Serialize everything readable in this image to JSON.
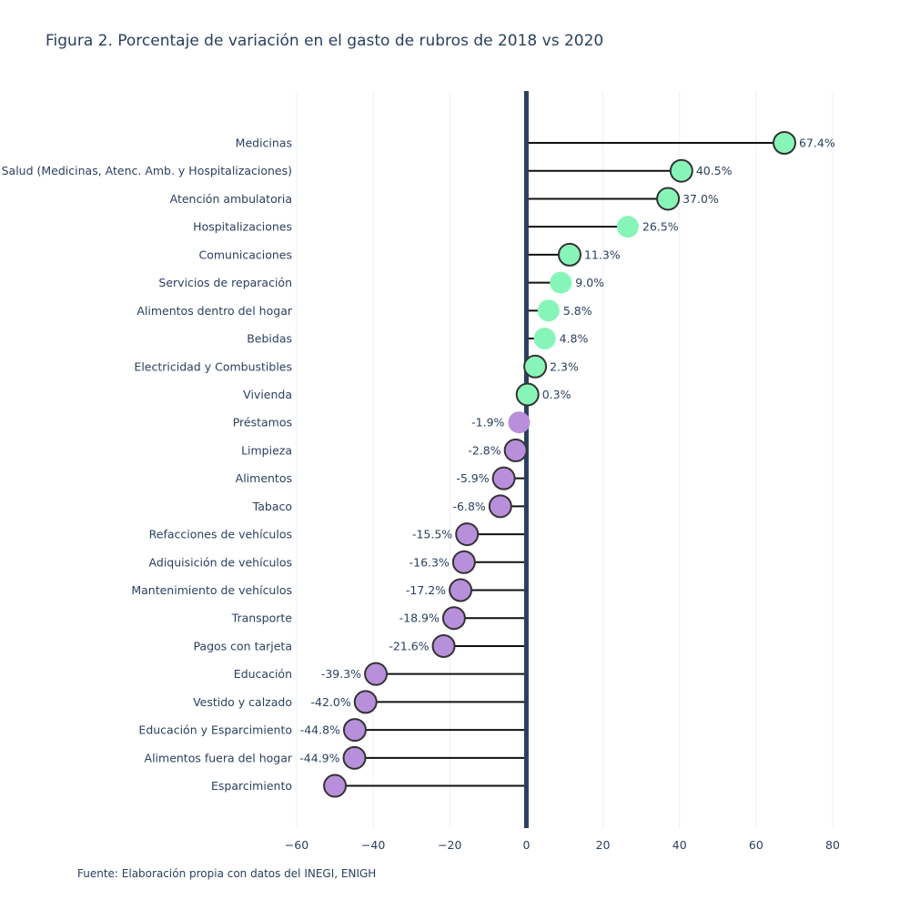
{
  "chart_data": {
    "type": "lollipop",
    "title": "Figura 2. Porcentaje de variación en el gasto de rubros de 2018 vs 2020",
    "source": "Fuente: Elaboración propia con datos del INEGI, ENIGH",
    "xlim": [
      -60,
      80
    ],
    "xticks": [
      -60,
      -40,
      -20,
      0,
      20,
      40,
      60,
      80
    ],
    "xtick_labels": [
      "−60",
      "−40",
      "−20",
      "0",
      "20",
      "40",
      "60",
      "80"
    ],
    "positive_color": "#88f5b8",
    "negative_color": "#b88fda",
    "zero_line_color": "#2a3f5f",
    "categories": [
      "Medicinas",
      "Salud (Medicinas, Atenc. Amb. y Hospitalizaciones)",
      "Atención ambulatoria",
      "Hospitalizaciones",
      "Comunicaciones",
      "Servicios de reparación",
      "Alimentos dentro del hogar",
      "Bebidas",
      "Electricidad y Combustibles",
      "Vivienda",
      "Préstamos",
      "Limpieza",
      "Alimentos",
      "Tabaco",
      "Refacciones de vehículos",
      "Adiquisición de vehículos",
      "Mantenimiento de vehículos",
      "Transporte",
      "Pagos con tarjeta",
      "Educación",
      "Vestido y calzado",
      "Educación y Esparcimiento",
      "Alimentos fuera del hogar",
      "Esparcimiento"
    ],
    "values": [
      67.4,
      40.5,
      37.0,
      26.5,
      11.3,
      9.0,
      5.8,
      4.8,
      2.3,
      0.3,
      -1.9,
      -2.8,
      -5.9,
      -6.8,
      -15.5,
      -16.3,
      -17.2,
      -18.9,
      -21.6,
      -39.3,
      -42.0,
      -44.8,
      -44.9,
      -50.0
    ],
    "value_labels": [
      "67.4%",
      "40.5%",
      "37.0%",
      "26.5%",
      "11.3%",
      "9.0%",
      "5.8%",
      "4.8%",
      "2.3%",
      "0.3%",
      "-1.9%",
      "-2.8%",
      "-5.9%",
      "-6.8%",
      "-15.5%",
      "-16.3%",
      "-17.2%",
      "-18.9%",
      "-21.6%",
      "-39.3%",
      "-42.0%",
      "-44.8%",
      "-44.9%",
      ""
    ],
    "outlined": [
      true,
      true,
      true,
      false,
      true,
      false,
      false,
      false,
      true,
      true,
      false,
      true,
      true,
      true,
      true,
      true,
      true,
      true,
      true,
      true,
      true,
      true,
      true,
      true
    ]
  }
}
